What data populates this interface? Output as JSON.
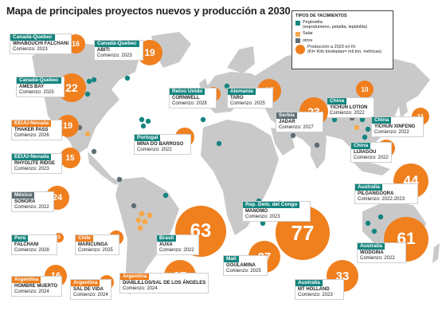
{
  "title": "Mapa de principales proyectos nuevos y producción a 2030",
  "legend": {
    "heading": "TIPOS DE YACIMIENTOS",
    "items": [
      {
        "label": "Pegmatita",
        "sub": "(espodumeno, petalita, lepidolita)",
        "color": "#14857f"
      },
      {
        "label": "Salar",
        "sub": "",
        "color": "#f5a94b"
      },
      {
        "label": "otros",
        "sub": "",
        "color": "#5e6e76"
      }
    ],
    "production_label": "Producción a 2023 en Kt",
    "production_sub": "(Kt= Kilo toneladas= mil ton. métricas)",
    "production_color": "#f07f1e"
  },
  "colors": {
    "land": "#c9c9c9",
    "ocean": "#ffffff",
    "teal": "#14857f",
    "orange": "#ef7d1b",
    "gray": "#5e6e76"
  },
  "projects": [
    {
      "region": "Canadá-Quebec",
      "name": "WHABOUCHI FALCHANI",
      "start": "Comienzo: 2023",
      "value": "16",
      "type": "teal"
    },
    {
      "region": "Canadá-Quebec",
      "name": "ABITI",
      "start": "Comienzo: 2023",
      "value": "19",
      "type": "teal"
    },
    {
      "region": "Canadá-Quebec",
      "name": "AMES BAY",
      "start": "Comienzo: 2025",
      "value": "22",
      "type": "teal"
    },
    {
      "region": "Reino Unido",
      "name": "CORNWELL",
      "start": "Comienzo: 2028",
      "value": "9",
      "type": "teal"
    },
    {
      "region": "Alemania",
      "name": "TARO",
      "start": "Comienzo: 2025",
      "value": "17",
      "type": "teal"
    },
    {
      "region": "China",
      "name": "YICHUN LOTION",
      "start": "Comienzo: 2022",
      "value": "10",
      "type": "teal"
    },
    {
      "region": "China",
      "name": "YICHUN XINFENG",
      "start": "Comienzo: 2022",
      "value": "11",
      "type": "teal"
    },
    {
      "region": "China",
      "name": "LIJIAGOU",
      "start": "Comienzo: 2022",
      "value": "11",
      "type": "teal"
    },
    {
      "region": "Serbia",
      "name": "JADAR",
      "start": "Comienzo: 2027",
      "value": "23",
      "type": "gray"
    },
    {
      "region": "EEUU-Nevada",
      "name": "THAKER PASS",
      "start": "Comienzo: 2026",
      "value": "19",
      "type": "orange"
    },
    {
      "region": "EEUU-Nevada",
      "name": "RHYOLITE RIDGE",
      "start": "Comienzo: 2023",
      "value": "15",
      "type": "teal"
    },
    {
      "region": "Portugal",
      "name": "MINA DO BARROSO",
      "start": "Comienzo: 2022",
      "value": "12",
      "type": "teal"
    },
    {
      "region": "México",
      "name": "SONORA",
      "start": "Comienzo: 2022",
      "value": "24",
      "type": "gray"
    },
    {
      "region": "Australia",
      "name": "PILGANGOORA",
      "start": "Comienzo: 2022-2023",
      "value": "44",
      "type": "teal"
    },
    {
      "region": "Rep. Dem. del Congo",
      "name": "MANOMO",
      "start": "Comienzo: 2023",
      "value": "77",
      "type": "teal"
    },
    {
      "region": "Perú",
      "name": "FALCHANI",
      "start": "Comienzo: 2028",
      "value": "3",
      "type": "teal"
    },
    {
      "region": "Chile",
      "name": "MARICUNGA",
      "start": "Comienzo: 2025",
      "value": "8",
      "type": "orange"
    },
    {
      "region": "Brasil",
      "name": "XUXA",
      "start": "Comienzo: 2022",
      "value": "63",
      "type": "teal"
    },
    {
      "region": "Mali",
      "name": "GOULAMINA",
      "start": "Comienzo: 2025",
      "value": "27",
      "type": "teal"
    },
    {
      "region": "Australia",
      "name": "WODGINA",
      "start": "Comienzo: 2022",
      "value": "61",
      "type": "teal"
    },
    {
      "region": "Argentina",
      "name": "HOMBRE MUERTO",
      "start": "Comienzo: 2024",
      "value": "16",
      "type": "orange"
    },
    {
      "region": "Argentina",
      "name": "SAL DE VIDA",
      "start": "Comienzo: 2024",
      "value": "8",
      "type": "orange"
    },
    {
      "region": "Argentina",
      "name": "DIABLILLOS/SAL DE LOS ÁNGELES",
      "start": "Comienzo: 2024",
      "value": "37",
      "type": "orange"
    },
    {
      "region": "Australia",
      "name": "MT HOLLAND",
      "start": "Comienzo: 2023",
      "value": "33",
      "type": "teal"
    }
  ]
}
